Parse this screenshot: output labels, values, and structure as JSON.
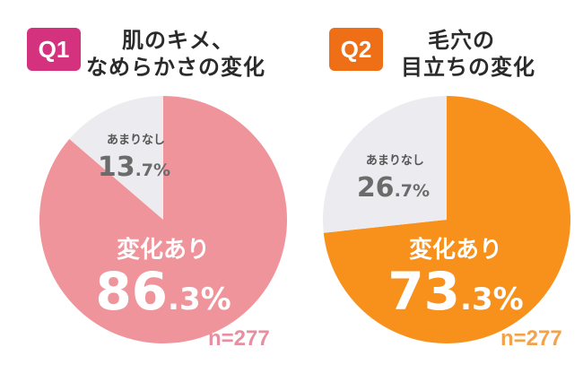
{
  "chart_data": [
    {
      "type": "pie",
      "badge": "Q1",
      "title_lines": [
        "肌のキメ、",
        "なめらかさの変化"
      ],
      "slices": [
        {
          "label": "変化あり",
          "value": 86.3,
          "color": "#f0949c",
          "pct_big": "86",
          "pct_small": ".3%"
        },
        {
          "label": "あまりなし",
          "value": 13.7,
          "color": "#ececf0",
          "pct_big": "13",
          "pct_small": ".7%"
        }
      ],
      "n_text": "n=277",
      "n_color": "#e58fa0",
      "badge_color": "#d4327e"
    },
    {
      "type": "pie",
      "badge": "Q2",
      "title_lines": [
        "毛穴の",
        "目立ちの変化"
      ],
      "slices": [
        {
          "label": "変化あり",
          "value": 73.3,
          "color": "#f7911c",
          "pct_big": "73",
          "pct_small": ".3%"
        },
        {
          "label": "あまりなし",
          "value": 26.7,
          "color": "#ececf0",
          "pct_big": "26",
          "pct_small": ".7%"
        }
      ],
      "n_text": "n=277",
      "n_color": "#f3a24c",
      "badge_color": "#ee6f16"
    }
  ]
}
